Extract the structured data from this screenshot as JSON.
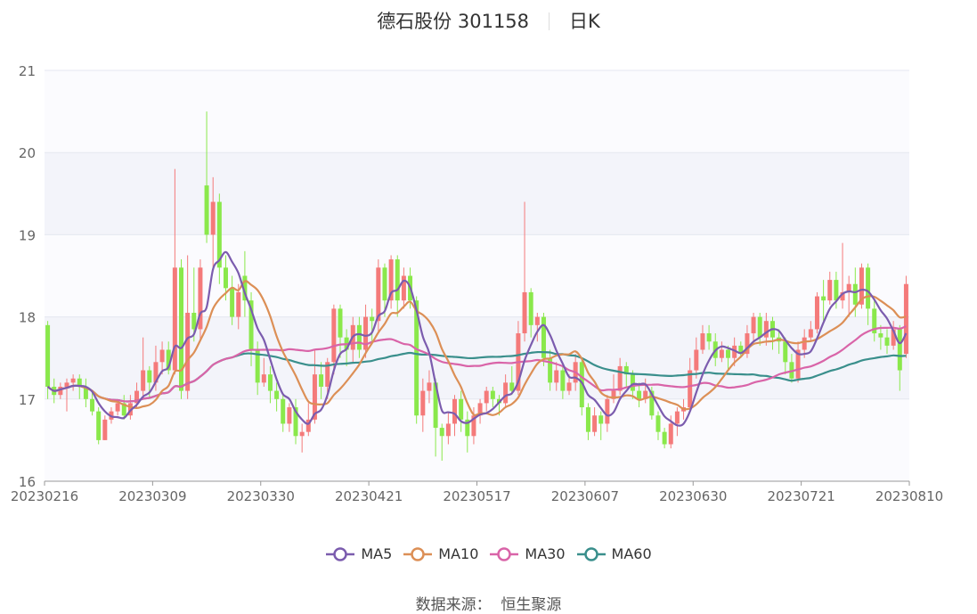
{
  "header": {
    "title": "德石股份 301158",
    "period": "日K"
  },
  "source": {
    "label": "数据来源：",
    "name": "恒生聚源"
  },
  "colors": {
    "up": "#f47a7a",
    "down": "#8ae84b",
    "MA5": "#7b5cae",
    "MA10": "#dc8f56",
    "MA30": "#d964a8",
    "MA60": "#3a8f8c",
    "grid": "#e4e7f0",
    "band": "#f3f4fa"
  },
  "chart_data": {
    "type": "candlestick",
    "ylim": [
      16,
      21
    ],
    "yticks": [
      16,
      17,
      18,
      19,
      20,
      21
    ],
    "xticks": [
      "20230216",
      "20230309",
      "20230330",
      "20230421",
      "20230517",
      "20230607",
      "20230630",
      "20230721",
      "20230810"
    ],
    "legend": [
      "MA5",
      "MA10",
      "MA30",
      "MA60"
    ],
    "candles": [
      [
        17.9,
        17.15,
        17.95,
        17.0
      ],
      [
        17.15,
        17.05,
        17.25,
        16.95
      ],
      [
        17.05,
        17.15,
        17.2,
        17.0
      ],
      [
        17.15,
        17.2,
        17.25,
        16.85
      ],
      [
        17.2,
        17.25,
        17.3,
        17.1
      ],
      [
        17.25,
        17.15,
        17.3,
        17.0
      ],
      [
        17.15,
        17.0,
        17.25,
        16.9
      ],
      [
        17.0,
        16.85,
        17.1,
        16.8
      ],
      [
        16.85,
        16.5,
        16.9,
        16.45
      ],
      [
        16.5,
        16.75,
        16.8,
        16.5
      ],
      [
        16.75,
        16.85,
        16.9,
        16.7
      ],
      [
        16.85,
        16.95,
        17.0,
        16.8
      ],
      [
        16.95,
        16.8,
        17.05,
        16.75
      ],
      [
        16.8,
        16.95,
        17.05,
        16.75
      ],
      [
        16.95,
        17.1,
        17.2,
        16.9
      ],
      [
        17.1,
        17.35,
        17.75,
        17.0
      ],
      [
        17.35,
        17.2,
        17.4,
        17.0
      ],
      [
        17.2,
        17.45,
        17.65,
        17.1
      ],
      [
        17.45,
        17.6,
        17.7,
        17.3
      ],
      [
        17.6,
        17.35,
        17.7,
        17.3
      ],
      [
        17.35,
        18.6,
        19.8,
        17.3
      ],
      [
        18.6,
        17.1,
        18.7,
        17.0
      ],
      [
        17.1,
        18.05,
        18.75,
        17.0
      ],
      [
        18.05,
        17.85,
        18.6,
        17.7
      ],
      [
        17.85,
        18.6,
        18.7,
        17.7
      ],
      [
        19.6,
        19.0,
        20.5,
        18.9
      ],
      [
        19.0,
        19.4,
        19.7,
        18.6
      ],
      [
        19.4,
        18.6,
        19.5,
        18.4
      ],
      [
        18.6,
        18.35,
        18.75,
        18.2
      ],
      [
        18.35,
        18.0,
        18.5,
        17.9
      ],
      [
        18.0,
        18.3,
        18.4,
        17.85
      ],
      [
        18.5,
        18.2,
        18.8,
        18.0
      ],
      [
        18.2,
        17.6,
        18.3,
        17.4
      ],
      [
        17.6,
        17.2,
        17.7,
        17.05
      ],
      [
        17.2,
        17.3,
        17.5,
        17.15
      ],
      [
        17.3,
        17.1,
        17.4,
        16.95
      ],
      [
        17.1,
        17.0,
        17.2,
        16.85
      ],
      [
        17.0,
        16.7,
        17.05,
        16.6
      ],
      [
        16.7,
        16.9,
        16.95,
        16.6
      ],
      [
        16.9,
        16.55,
        17.0,
        16.45
      ],
      [
        16.55,
        16.6,
        16.7,
        16.35
      ],
      [
        16.6,
        16.75,
        16.95,
        16.55
      ],
      [
        16.75,
        17.3,
        17.6,
        16.7
      ],
      [
        17.3,
        17.15,
        17.45,
        17.0
      ],
      [
        17.15,
        17.45,
        17.5,
        17.0
      ],
      [
        17.45,
        18.1,
        18.15,
        17.3
      ],
      [
        18.1,
        17.75,
        18.15,
        17.5
      ],
      [
        17.75,
        17.6,
        17.85,
        17.4
      ],
      [
        17.6,
        17.9,
        18.0,
        17.45
      ],
      [
        17.9,
        17.6,
        18.0,
        17.5
      ],
      [
        17.6,
        18.0,
        18.15,
        17.5
      ],
      [
        18.0,
        17.95,
        18.1,
        17.7
      ],
      [
        17.95,
        18.6,
        18.7,
        17.8
      ],
      [
        18.6,
        18.2,
        18.65,
        18.0
      ],
      [
        18.2,
        18.7,
        18.75,
        18.1
      ],
      [
        18.7,
        18.2,
        18.75,
        18.0
      ],
      [
        18.2,
        18.5,
        18.6,
        18.1
      ],
      [
        18.5,
        18.2,
        18.6,
        18.1
      ],
      [
        18.2,
        16.8,
        18.25,
        16.7
      ],
      [
        16.8,
        17.1,
        17.25,
        16.6
      ],
      [
        17.1,
        17.2,
        17.35,
        16.95
      ],
      [
        17.2,
        16.65,
        17.25,
        16.3
      ],
      [
        16.65,
        16.55,
        16.7,
        16.25
      ],
      [
        16.55,
        16.7,
        16.85,
        16.45
      ],
      [
        16.7,
        17.0,
        17.05,
        16.55
      ],
      [
        17.0,
        16.75,
        17.1,
        16.6
      ],
      [
        16.75,
        16.55,
        16.85,
        16.35
      ],
      [
        16.55,
        16.8,
        16.9,
        16.45
      ],
      [
        16.8,
        16.95,
        17.0,
        16.7
      ],
      [
        16.95,
        17.1,
        17.15,
        16.85
      ],
      [
        17.1,
        17.0,
        17.15,
        16.9
      ],
      [
        17.0,
        16.95,
        17.05,
        16.8
      ],
      [
        16.95,
        17.2,
        17.3,
        16.9
      ],
      [
        17.2,
        17.1,
        17.4,
        17.05
      ],
      [
        17.1,
        17.8,
        17.95,
        17.05
      ],
      [
        17.8,
        18.3,
        19.4,
        17.7
      ],
      [
        18.3,
        17.9,
        18.35,
        17.75
      ],
      [
        17.9,
        18.0,
        18.05,
        17.7
      ],
      [
        18.0,
        17.5,
        18.05,
        17.4
      ],
      [
        17.5,
        17.2,
        17.6,
        17.1
      ],
      [
        17.2,
        17.35,
        17.45,
        17.1
      ],
      [
        17.35,
        17.1,
        17.4,
        17.0
      ],
      [
        17.1,
        17.2,
        17.3,
        17.05
      ],
      [
        17.2,
        17.45,
        17.55,
        17.1
      ],
      [
        17.45,
        16.9,
        17.5,
        16.8
      ],
      [
        16.9,
        16.6,
        16.95,
        16.5
      ],
      [
        16.6,
        16.8,
        16.9,
        16.55
      ],
      [
        16.8,
        16.7,
        16.85,
        16.5
      ],
      [
        16.7,
        17.0,
        17.05,
        16.6
      ],
      [
        17.0,
        17.1,
        17.3,
        16.95
      ],
      [
        17.1,
        17.4,
        17.5,
        17.05
      ],
      [
        17.4,
        17.3,
        17.45,
        17.15
      ],
      [
        17.3,
        17.1,
        17.35,
        17.0
      ],
      [
        17.1,
        17.0,
        17.2,
        16.9
      ],
      [
        17.0,
        17.1,
        17.25,
        16.95
      ],
      [
        17.1,
        16.8,
        17.15,
        16.75
      ],
      [
        16.8,
        16.6,
        16.85,
        16.5
      ],
      [
        16.6,
        16.45,
        16.65,
        16.4
      ],
      [
        16.45,
        16.7,
        16.8,
        16.4
      ],
      [
        16.7,
        16.85,
        16.9,
        16.55
      ],
      [
        16.85,
        16.9,
        17.0,
        16.75
      ],
      [
        16.9,
        17.35,
        17.5,
        16.85
      ],
      [
        17.35,
        17.6,
        17.75,
        17.25
      ],
      [
        17.6,
        17.8,
        17.9,
        17.55
      ],
      [
        17.8,
        17.7,
        17.9,
        17.6
      ],
      [
        17.7,
        17.5,
        17.8,
        17.4
      ],
      [
        17.5,
        17.6,
        17.7,
        17.45
      ],
      [
        17.6,
        17.5,
        17.65,
        17.35
      ],
      [
        17.5,
        17.65,
        17.75,
        17.4
      ],
      [
        17.65,
        17.55,
        17.7,
        17.5
      ],
      [
        17.55,
        17.8,
        17.9,
        17.5
      ],
      [
        17.8,
        18.0,
        18.05,
        17.7
      ],
      [
        18.0,
        17.75,
        18.05,
        17.65
      ],
      [
        17.75,
        17.95,
        18.05,
        17.65
      ],
      [
        17.95,
        17.75,
        18.0,
        17.6
      ],
      [
        17.75,
        17.7,
        17.85,
        17.55
      ],
      [
        17.7,
        17.45,
        17.75,
        17.3
      ],
      [
        17.45,
        17.25,
        17.55,
        17.2
      ],
      [
        17.25,
        17.6,
        17.7,
        17.2
      ],
      [
        17.6,
        17.75,
        17.85,
        17.5
      ],
      [
        17.75,
        17.85,
        17.95,
        17.7
      ],
      [
        17.85,
        18.25,
        18.3,
        17.8
      ],
      [
        18.25,
        18.2,
        18.45,
        17.95
      ],
      [
        18.2,
        18.45,
        18.55,
        18.15
      ],
      [
        18.45,
        18.2,
        18.55,
        18.1
      ],
      [
        18.2,
        18.3,
        18.9,
        18.1
      ],
      [
        18.3,
        18.4,
        18.5,
        18.0
      ],
      [
        18.4,
        18.15,
        18.6,
        18.0
      ],
      [
        18.15,
        18.6,
        18.65,
        18.1
      ],
      [
        18.6,
        18.1,
        18.65,
        17.9
      ],
      [
        18.1,
        17.8,
        18.2,
        17.7
      ],
      [
        17.8,
        17.75,
        17.9,
        17.6
      ],
      [
        17.75,
        17.65,
        17.85,
        17.55
      ],
      [
        17.65,
        17.85,
        17.95,
        17.6
      ],
      [
        17.85,
        17.35,
        17.9,
        17.1
      ],
      [
        17.55,
        18.4,
        18.5,
        17.5
      ]
    ]
  }
}
